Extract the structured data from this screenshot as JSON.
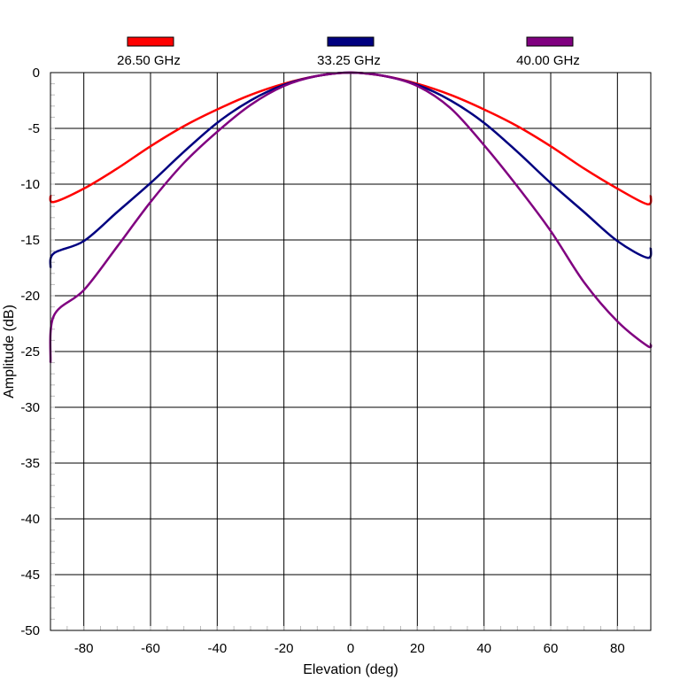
{
  "chart_data": {
    "type": "line",
    "xlabel": "Elevation (deg)",
    "ylabel": "Amplitude (dB)",
    "xlim": [
      -90,
      90
    ],
    "ylim": [
      -50,
      0
    ],
    "xticks": [
      -80,
      -60,
      -40,
      -20,
      0,
      20,
      40,
      60,
      80
    ],
    "yticks": [
      0,
      -5,
      -10,
      -15,
      -20,
      -25,
      -30,
      -35,
      -40,
      -45,
      -50
    ],
    "grid": true,
    "legend_position": "top",
    "series": [
      {
        "name": "26.50 GHz",
        "color": "#ff0000",
        "x": [
          -90,
          -89,
          -80,
          -70,
          -60,
          -50,
          -40,
          -30,
          -20,
          -10,
          0,
          10,
          20,
          30,
          40,
          50,
          60,
          70,
          80,
          89,
          90
        ],
        "y": [
          -11.0,
          -11.6,
          -10.4,
          -8.6,
          -6.6,
          -4.8,
          -3.3,
          -2.0,
          -1.0,
          -0.3,
          0,
          -0.3,
          -1.0,
          -2.0,
          -3.3,
          -4.8,
          -6.6,
          -8.6,
          -10.4,
          -11.8,
          -11.0
        ]
      },
      {
        "name": "33.25 GHz",
        "color": "#000080",
        "x": [
          -90,
          -89,
          -80,
          -70,
          -60,
          -50,
          -40,
          -30,
          -20,
          -10,
          0,
          10,
          20,
          30,
          40,
          50,
          60,
          70,
          80,
          89,
          90
        ],
        "y": [
          -17.5,
          -16.2,
          -15.1,
          -12.5,
          -9.9,
          -7.1,
          -4.5,
          -2.5,
          -1.1,
          -0.3,
          0,
          -0.3,
          -1.1,
          -2.5,
          -4.5,
          -7.1,
          -9.9,
          -12.5,
          -15.1,
          -16.6,
          -15.7
        ]
      },
      {
        "name": "40.00 GHz",
        "color": "#800080",
        "x": [
          -90,
          -89,
          -80,
          -70,
          -60,
          -50,
          -40,
          -30,
          -20,
          -10,
          0,
          10,
          20,
          30,
          40,
          50,
          60,
          70,
          80,
          89,
          90
        ],
        "y": [
          -26.0,
          -21.8,
          -19.5,
          -15.6,
          -11.6,
          -8.1,
          -5.3,
          -2.9,
          -1.2,
          -0.3,
          0,
          -0.3,
          -1.2,
          -3.2,
          -6.5,
          -10.2,
          -14.2,
          -18.8,
          -22.3,
          -24.5,
          -24.3
        ]
      }
    ]
  }
}
